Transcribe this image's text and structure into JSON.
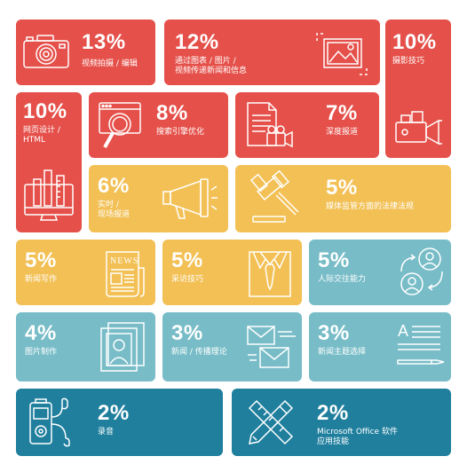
{
  "tiles": [
    {
      "pct": "13%",
      "label": "视频拍摄 / 编辑",
      "icon": "camera-icon"
    },
    {
      "pct": "12%",
      "label_line1": "通过图表 / 图片 /",
      "label_line2": "视频传递新闻和信息",
      "icon": "image-frame-icon"
    },
    {
      "pct": "10%",
      "label": "摄影技巧",
      "icon": "video-camera-icon"
    },
    {
      "pct": "10%",
      "label_line1": "网页设计 /",
      "label_line2": "HTML",
      "icon": "web-design-icon"
    },
    {
      "pct": "8%",
      "label": "搜索引擎优化",
      "icon": "search-browser-icon"
    },
    {
      "pct": "7%",
      "label": "深度报道",
      "icon": "document-camera-icon"
    },
    {
      "pct": "6%",
      "label_line1": "实时 /",
      "label_line2": "现场报道",
      "icon": "megaphone-icon"
    },
    {
      "pct": "5%",
      "label": "媒体监管方面的法律法规",
      "icon": "gavel-icon"
    },
    {
      "pct": "5%",
      "label": "新闻写作",
      "icon": "newspaper-icon",
      "icon_text": "NEWS"
    },
    {
      "pct": "5%",
      "label": "采访技巧",
      "icon": "shirt-tie-icon"
    },
    {
      "pct": "5%",
      "label": "人际交往能力",
      "icon": "people-exchange-icon"
    },
    {
      "pct": "4%",
      "label": "图片制作",
      "icon": "photo-portrait-icon"
    },
    {
      "pct": "3%",
      "label": "新闻 / 传播理论",
      "icon": "envelopes-icon"
    },
    {
      "pct": "3%",
      "label": "新闻主题选择",
      "icon": "text-pen-icon",
      "icon_text": "A"
    },
    {
      "pct": "2%",
      "label": "录音",
      "icon": "audio-recorder-icon"
    },
    {
      "pct": "2%",
      "label_line1": "Microsoft Office 软件",
      "label_line2": "应用技能",
      "icon": "pencil-ruler-icon"
    }
  ],
  "colors": {
    "red": "#e5504a",
    "yellow": "#f2c055",
    "teal": "#77bcc7",
    "blue": "#1f7f9d",
    "white": "#ffffff"
  }
}
